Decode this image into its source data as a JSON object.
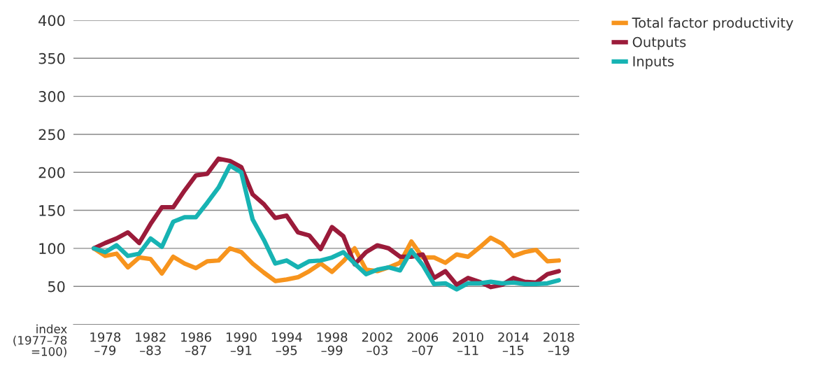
{
  "chart_data": {
    "type": "line",
    "ylabel": "index\n(1977–78\n=100)",
    "categories": [
      null,
      "1978\n–79",
      null,
      null,
      null,
      "1982\n–83",
      null,
      null,
      null,
      "1986\n–87",
      null,
      null,
      null,
      "1990\n–91",
      null,
      null,
      null,
      "1994\n–95",
      null,
      null,
      null,
      "1998\n–99",
      null,
      null,
      null,
      "2002\n–03",
      null,
      null,
      null,
      "2006\n–07",
      null,
      null,
      null,
      "2010\n–11",
      null,
      null,
      null,
      "2014\n–15",
      null,
      null,
      null,
      "2018\n–19"
    ],
    "series": [
      {
        "name": "Total factor productivity",
        "color": "#f7941d",
        "values": [
          100,
          90,
          93,
          75,
          88,
          86,
          67,
          89,
          80,
          74,
          83,
          84,
          100,
          95,
          80,
          68,
          57,
          59,
          62,
          70,
          80,
          69,
          83,
          100,
          72,
          70,
          75,
          81,
          109,
          88,
          88,
          81,
          92,
          89,
          101,
          114,
          106,
          90,
          95,
          98,
          83,
          84
        ]
      },
      {
        "name": "Outputs",
        "color": "#9b1b3a",
        "values": [
          100,
          107,
          113,
          121,
          107,
          132,
          154,
          154,
          176,
          196,
          198,
          218,
          215,
          207,
          171,
          158,
          140,
          143,
          121,
          117,
          99,
          128,
          116,
          79,
          95,
          104,
          100,
          89,
          89,
          92,
          61,
          70,
          52,
          61,
          56,
          49,
          52,
          61,
          56,
          55,
          66,
          70
        ]
      },
      {
        "name": "Inputs",
        "color": "#17b3b3",
        "values": [
          100,
          95,
          104,
          90,
          93,
          113,
          102,
          135,
          141,
          141,
          160,
          180,
          209,
          200,
          138,
          111,
          80,
          84,
          75,
          83,
          84,
          88,
          95,
          80,
          66,
          72,
          75,
          71,
          97,
          78,
          53,
          54,
          46,
          54,
          54,
          56,
          54,
          55,
          53,
          53,
          54,
          58
        ]
      }
    ],
    "ylim": [
      0,
      400
    ],
    "yticks": [
      50,
      100,
      150,
      200,
      250,
      300,
      350,
      400
    ],
    "grid": "y",
    "legend": "top right",
    "marker": "none",
    "line_style": "solid"
  }
}
